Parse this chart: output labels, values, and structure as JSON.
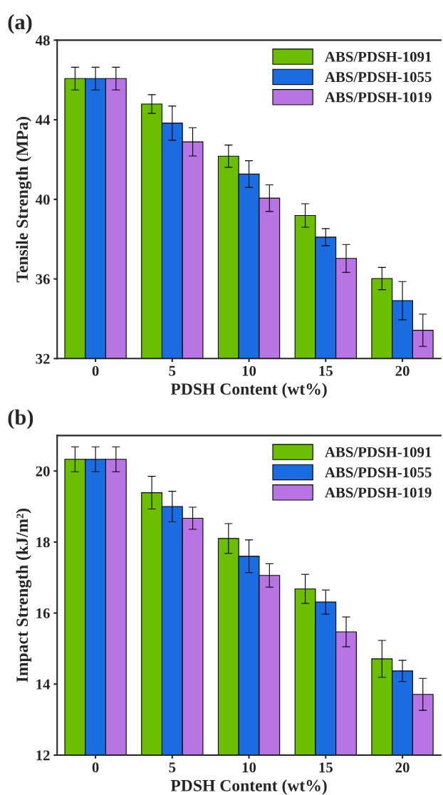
{
  "chart_data": [
    {
      "type": "bar",
      "title": "(a)",
      "xlabel": "PDSH Content (wt%)",
      "ylabel": "Tensile Strength (MPa)",
      "categories": [
        "0",
        "5",
        "10",
        "15",
        "20"
      ],
      "ylim": [
        32,
        48
      ],
      "yticks": [
        32,
        36,
        40,
        44,
        48
      ],
      "legend": "top right",
      "series": [
        {
          "name": "ABS/PDSH-1091",
          "color": "#6cbf00",
          "values": [
            46.07,
            44.79,
            42.17,
            39.19,
            36.02
          ],
          "errors": [
            0.57,
            0.47,
            0.56,
            0.59,
            0.56
          ]
        },
        {
          "name": "ABS/PDSH-1055",
          "color": "#1a6ce0",
          "values": [
            46.07,
            43.83,
            41.27,
            38.1,
            34.91
          ],
          "errors": [
            0.57,
            0.86,
            0.67,
            0.43,
            0.96
          ]
        },
        {
          "name": "ABS/PDSH-1019",
          "color": "#b874e3",
          "values": [
            46.07,
            42.89,
            40.06,
            37.03,
            33.42
          ],
          "errors": [
            0.57,
            0.71,
            0.67,
            0.7,
            0.81
          ]
        }
      ]
    },
    {
      "type": "bar",
      "title": "(b)",
      "xlabel": "PDSH Content (wt%)",
      "ylabel": "Impact Strength (kJ/m²)",
      "categories": [
        "0",
        "5",
        "10",
        "15",
        "20"
      ],
      "ylim": [
        12,
        21
      ],
      "yticks": [
        12,
        14,
        16,
        18,
        20
      ],
      "legend": "top right",
      "series": [
        {
          "name": "ABS/PDSH-1091",
          "color": "#6cbf00",
          "values": [
            20.33,
            19.39,
            18.1,
            16.68,
            14.71
          ],
          "errors": [
            0.35,
            0.46,
            0.42,
            0.41,
            0.52
          ]
        },
        {
          "name": "ABS/PDSH-1055",
          "color": "#1a6ce0",
          "values": [
            20.33,
            19.0,
            17.6,
            16.31,
            14.37
          ],
          "errors": [
            0.35,
            0.43,
            0.46,
            0.34,
            0.3
          ]
        },
        {
          "name": "ABS/PDSH-1019",
          "color": "#b874e3",
          "values": [
            20.33,
            18.67,
            17.06,
            15.47,
            13.71
          ],
          "errors": [
            0.35,
            0.31,
            0.33,
            0.42,
            0.45
          ]
        }
      ]
    }
  ]
}
